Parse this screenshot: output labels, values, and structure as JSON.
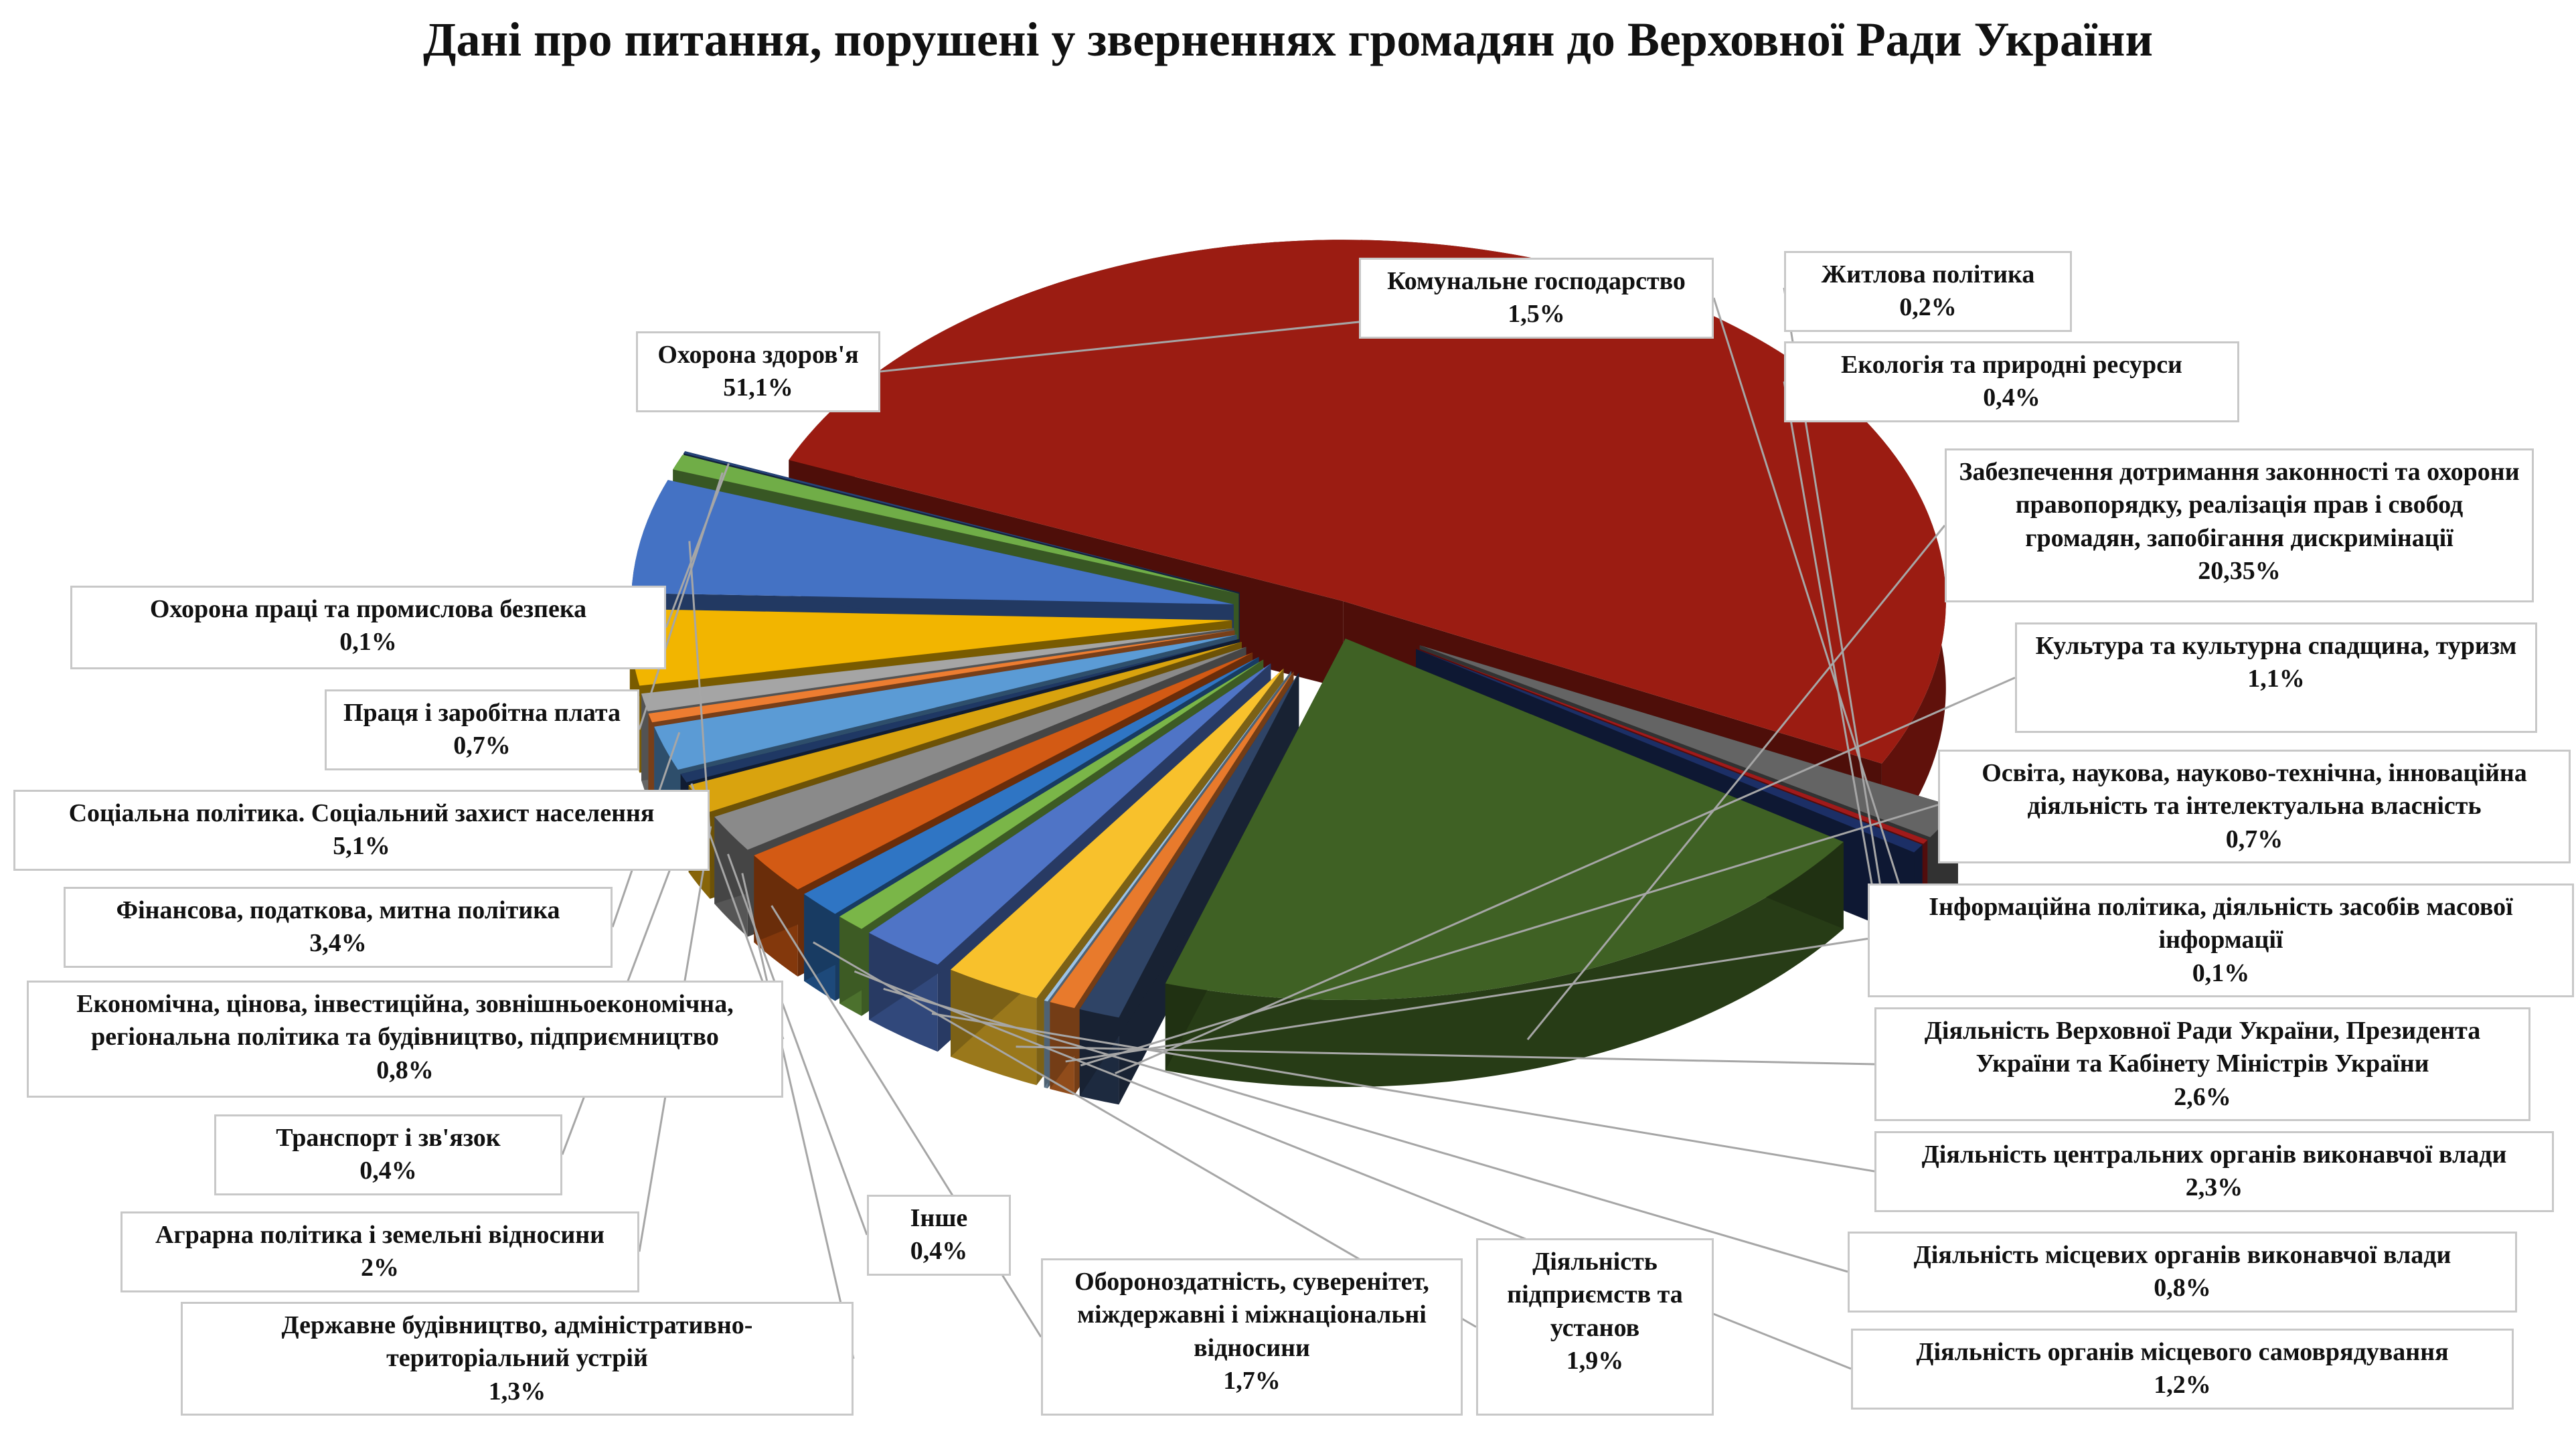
{
  "chart_data": {
    "type": "pie",
    "title": "Дані про питання, порушені у зверненнях громадян до Верховної Ради України",
    "slices": [
      {
        "label": "Охорона здоров'я",
        "value_text": "51,1%",
        "value": 51.1,
        "color": "#9b1c12"
      },
      {
        "label": "Комунальне господарство",
        "value_text": "1,5%",
        "value": 1.5,
        "color": "#646464"
      },
      {
        "label": "Житлова політика",
        "value_text": "0,2%",
        "value": 0.2,
        "color": "#a11a1a"
      },
      {
        "label": "Екологія та природні ресурси",
        "value_text": "0,4%",
        "value": 0.4,
        "color": "#1c2f66"
      },
      {
        "label": "Забезпечення дотримання законності та охорони правопорядку, реалізація прав і свобод громадян, запобігання дискримінації",
        "value_text": "20,35%",
        "value": 20.35,
        "color": "#3f6124"
      },
      {
        "label": "Культура та культурна спадщина, туризм",
        "value_text": "1,1%",
        "value": 1.1,
        "color": "#2f4466"
      },
      {
        "label": "Освіта, наукова, науково-технічна, інноваційна діяльність та інтелектуальна власність",
        "value_text": "0,7%",
        "value": 0.7,
        "color": "#e87a2c"
      },
      {
        "label": "Інформаційна політика, діяльність засобів масової інформації",
        "value_text": "0,1%",
        "value": 0.1,
        "color": "#9dc3e6"
      },
      {
        "label": "Діяльність Верховної Ради України, Президента України та Кабінету Міністрів України",
        "value_text": "2,6%",
        "value": 2.6,
        "color": "#f8c12c"
      },
      {
        "label": "Діяльність центральних органів виконавчої влади",
        "value_text": "2,3%",
        "value": 2.3,
        "color": "#4f74c6"
      },
      {
        "label": "Діяльність місцевих органів виконавчої влади",
        "value_text": "0,8%",
        "value": 0.8,
        "color": "#7ab648"
      },
      {
        "label": "Діяльність органів місцевого самоврядування",
        "value_text": "1,2%",
        "value": 1.2,
        "color": "#2f75c4"
      },
      {
        "label": "Діяльність підприємств та установ",
        "value_text": "1,9%",
        "value": 1.9,
        "color": "#d35a14"
      },
      {
        "label": "Обороноздатність, суверенітет, міждержавні і міжнаціональні відносини",
        "value_text": "1,7%",
        "value": 1.7,
        "color": "#8a8a8a"
      },
      {
        "label": "Державне будівництво, адміністративно-територіальний устрій",
        "value_text": "1,3%",
        "value": 1.3,
        "color": "#d9a30e"
      },
      {
        "label": "Інше",
        "value_text": "0,4%",
        "value": 0.4,
        "color": "#1f3864"
      },
      {
        "label": "Аграрна політика і земельні відносини",
        "value_text": "2%",
        "value": 2.0,
        "color": "#5b9bd5"
      },
      {
        "label": "Транспорт і зв'язок",
        "value_text": "0,4%",
        "value": 0.4,
        "color": "#ed7d31"
      },
      {
        "label": "Економічна, цінова, інвестиційна, зовнішньоекономічна, регіональна політика та будівництво, підприємництво",
        "value_text": "0,8%",
        "value": 0.8,
        "color": "#a5a5a5"
      },
      {
        "label": "Фінансова, податкова, митна політика",
        "value_text": "3,4%",
        "value": 3.4,
        "color": "#f2b500"
      },
      {
        "label": "Соціальна політика. Соціальний захист населення",
        "value_text": "5,1%",
        "value": 5.1,
        "color": "#4472c4"
      },
      {
        "label": "Праця і заробітна плата",
        "value_text": "0,7%",
        "value": 0.7,
        "color": "#70ad47"
      },
      {
        "label": "Охорона праці та промислова безпека",
        "value_text": "0,1%",
        "value": 0.1,
        "color": "#264478"
      }
    ],
    "legend": "none",
    "style": "3d-exploded-pie"
  }
}
